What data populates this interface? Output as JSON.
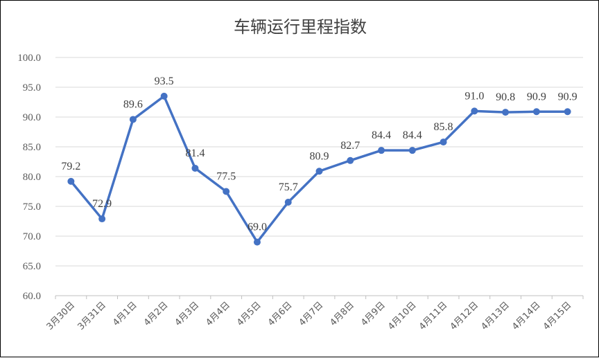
{
  "chart_data": {
    "type": "line",
    "title": "车辆运行里程指数",
    "xlabel": "",
    "ylabel": "",
    "ylim": [
      60.0,
      100.0
    ],
    "yticks": [
      "60.0",
      "65.0",
      "70.0",
      "75.0",
      "80.0",
      "85.0",
      "90.0",
      "95.0",
      "100.0"
    ],
    "categories": [
      "3月30日",
      "3月31日",
      "4月1日",
      "4月2日",
      "4月3日",
      "4月4日",
      "4月5日",
      "4月6日",
      "4月7日",
      "4月8日",
      "4月9日",
      "4月10日",
      "4月11日",
      "4月12日",
      "4月13日",
      "4月14日",
      "4月15日"
    ],
    "series": [
      {
        "values": [
          79.2,
          72.9,
          89.6,
          93.5,
          81.4,
          77.5,
          69.0,
          75.7,
          80.9,
          82.7,
          84.4,
          84.4,
          85.8,
          91.0,
          90.8,
          90.9,
          90.9
        ],
        "labels": [
          "79.2",
          "72.9",
          "89.6",
          "93.5",
          "81.4",
          "77.5",
          "69.0",
          "75.7",
          "80.9",
          "82.7",
          "84.4",
          "84.4",
          "85.8",
          "91.0",
          "90.8",
          "90.9",
          "90.9"
        ],
        "color": "#4472C4"
      }
    ],
    "grid": true,
    "legend": "none"
  }
}
